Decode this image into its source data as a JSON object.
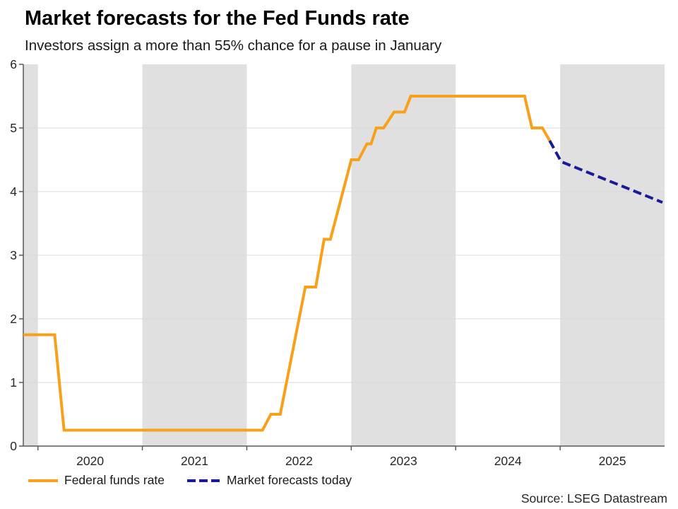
{
  "header": {
    "title": "Market forecasts for the Fed Funds rate",
    "subtitle": "Investors assign a more than 55% chance for a pause in January"
  },
  "footer": {
    "source": "Source: LSEG Datastream"
  },
  "colors": {
    "actual_line": "#F9A01B",
    "forecast_line": "#1A1A99",
    "band": "#E0E0E0",
    "gridline": "#D9D9D9",
    "axis": "#595959",
    "tick_text": "#262626",
    "background": "#FFFFFF"
  },
  "legend": {
    "items": [
      {
        "label": "Federal funds rate",
        "line_style": "solid",
        "color": "#F9A01B"
      },
      {
        "label": "Market forecasts today",
        "line_style": "dashed",
        "color": "#1A1A99"
      }
    ]
  },
  "chart_data": {
    "type": "line",
    "title": "Market forecasts for the Fed Funds rate",
    "subtitle": "Investors assign a more than 55% chance for a pause in January",
    "xlabel": "",
    "ylabel": "",
    "x_unit": "decimal_year",
    "xlim": [
      2019.86,
      2026.0
    ],
    "ylim": [
      0,
      6
    ],
    "y_ticks": [
      0,
      1,
      2,
      3,
      4,
      5,
      6
    ],
    "x_tick_years": [
      2020,
      2021,
      2022,
      2023,
      2024,
      2025
    ],
    "x_tick_labels": [
      "2020",
      "2021",
      "2022",
      "2023",
      "2024",
      "2025"
    ],
    "x_tick_label_position": "mid-year",
    "grid": "horizontal",
    "legend_position": "bottom-left",
    "shaded_year_bands": [
      [
        2019.86,
        2020.0
      ],
      [
        2021.0,
        2022.0
      ],
      [
        2023.0,
        2024.0
      ],
      [
        2025.0,
        2026.0
      ]
    ],
    "series": [
      {
        "name": "Federal funds rate",
        "style": "solid",
        "color": "#F9A01B",
        "points": [
          [
            2019.86,
            1.75
          ],
          [
            2020.16,
            1.75
          ],
          [
            2020.25,
            0.25
          ],
          [
            2022.15,
            0.25
          ],
          [
            2022.23,
            0.5
          ],
          [
            2022.32,
            0.5
          ],
          [
            2022.56,
            2.5
          ],
          [
            2022.66,
            2.5
          ],
          [
            2022.74,
            3.25
          ],
          [
            2022.8,
            3.25
          ],
          [
            2023.0,
            4.5
          ],
          [
            2023.07,
            4.5
          ],
          [
            2023.15,
            4.75
          ],
          [
            2023.19,
            4.75
          ],
          [
            2023.24,
            5.0
          ],
          [
            2023.31,
            5.0
          ],
          [
            2023.41,
            5.25
          ],
          [
            2023.51,
            5.25
          ],
          [
            2023.57,
            5.5
          ],
          [
            2024.66,
            5.5
          ],
          [
            2024.73,
            5.0
          ],
          [
            2024.83,
            5.0
          ],
          [
            2024.9,
            4.8
          ]
        ]
      },
      {
        "name": "Market forecasts today",
        "style": "dashed",
        "color": "#1A1A99",
        "points": [
          [
            2024.9,
            4.8
          ],
          [
            2025.01,
            4.47
          ],
          [
            2025.98,
            3.83
          ]
        ]
      }
    ]
  }
}
